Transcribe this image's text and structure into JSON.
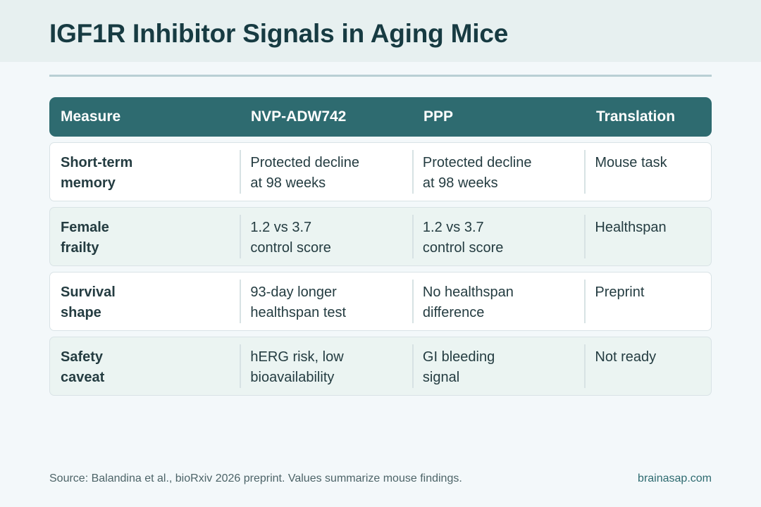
{
  "title": "IGF1R Inhibitor Signals in Aging Mice",
  "table": {
    "headers": [
      "Measure",
      "NVP-ADW742",
      "PPP",
      "Translation"
    ],
    "rows": [
      {
        "measure": [
          "Short-term",
          "memory"
        ],
        "nvp": [
          "Protected decline",
          "at 98 weeks"
        ],
        "ppp": [
          "Protected decline",
          "at 98 weeks"
        ],
        "translation": "Mouse task"
      },
      {
        "measure": [
          "Female",
          "frailty"
        ],
        "nvp": [
          "1.2 vs 3.7",
          "control score"
        ],
        "ppp": [
          "1.2 vs 3.7",
          "control score"
        ],
        "translation": "Healthspan"
      },
      {
        "measure": [
          "Survival",
          "shape"
        ],
        "nvp": [
          "93-day longer",
          "healthspan test"
        ],
        "ppp": [
          "No healthspan",
          "difference"
        ],
        "translation": "Preprint"
      },
      {
        "measure": [
          "Safety",
          "caveat"
        ],
        "nvp": [
          "hERG risk, low",
          "bioavailability"
        ],
        "ppp": [
          "GI bleeding",
          "signal"
        ],
        "translation": "Not ready"
      }
    ]
  },
  "footer": {
    "source": "Source: Balandina et al., bioRxiv 2026 preprint. Values summarize mouse findings.",
    "brand": "brainasap.com"
  }
}
